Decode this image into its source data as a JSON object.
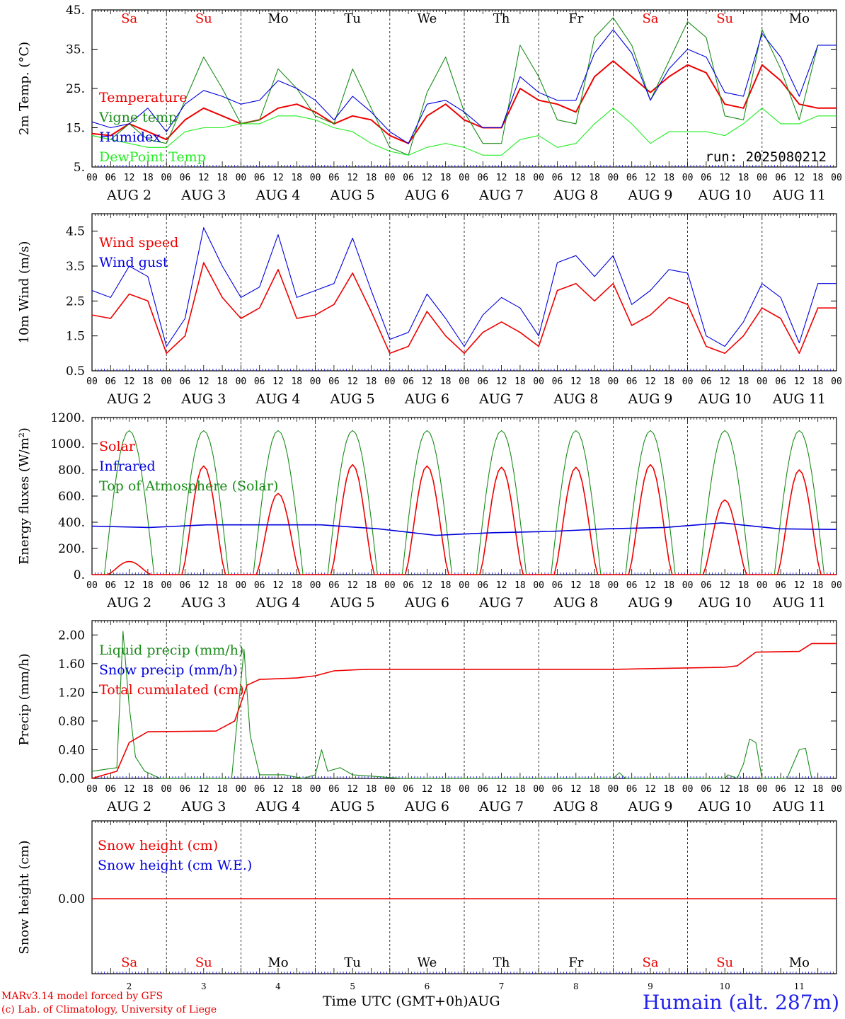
{
  "colors": {
    "red": "#ee0000",
    "blue": "#0000dd",
    "green": "#1a8c1a",
    "lightgreen": "#22ee22",
    "black": "#000000"
  },
  "run_label": "run: 2025080212",
  "footer": {
    "credit_line1": "MARv3.14 model forced by GFS",
    "credit_line2": "(c) Lab. of Climatology, University of Liege",
    "xaxis_title": "Time UTC (GMT+0h)",
    "month": "AUG",
    "station": "Humain (alt. 287m)"
  },
  "chart_data": [
    {
      "type": "line",
      "ylabel": "2m Temp. (°C)",
      "ylim": [
        5,
        45
      ],
      "yticks": [
        "5.",
        "15.",
        "25.",
        "35.",
        "45."
      ],
      "legend": [
        "Temperature",
        "Vigne temp",
        "Humidex",
        "DewPoint Temp"
      ],
      "x_hours": [
        0,
        6,
        12,
        18,
        24,
        30,
        36,
        42,
        48,
        54,
        60,
        66,
        72,
        78,
        84,
        90,
        96,
        102,
        108,
        114,
        120,
        126,
        132,
        138,
        144,
        150,
        156,
        162,
        168,
        174,
        180,
        186,
        192,
        198,
        204,
        210,
        216,
        222,
        228,
        234
      ],
      "series": [
        {
          "name": "Temperature",
          "color": "red",
          "values": [
            13.5,
            13,
            16,
            14,
            12,
            17,
            20,
            18,
            16,
            17,
            20,
            21,
            19,
            16,
            18,
            17,
            13,
            11,
            18,
            21,
            17,
            15,
            15,
            25,
            22,
            21,
            19,
            28,
            32,
            28,
            24,
            28,
            31,
            29,
            21,
            20,
            31,
            27,
            21,
            20
          ]
        },
        {
          "name": "Vigne temp",
          "color": "green",
          "values": [
            13,
            12,
            16,
            12,
            11,
            22,
            33,
            25,
            16,
            17,
            30,
            25,
            18,
            16,
            30,
            20,
            10,
            8,
            24,
            33,
            19,
            11,
            11,
            36,
            28,
            17,
            16,
            38,
            43,
            36,
            22,
            32,
            42,
            38,
            18,
            17,
            40,
            30,
            17,
            36
          ]
        },
        {
          "name": "Humidex",
          "color": "blue",
          "values": [
            16.5,
            15,
            16,
            20,
            14,
            21,
            24.5,
            23,
            21,
            22,
            27,
            25,
            22,
            17,
            23,
            19,
            14,
            11,
            21,
            22,
            19,
            15,
            15,
            28,
            24,
            22,
            22,
            34,
            40,
            34,
            22,
            30,
            35,
            33,
            24,
            23,
            39,
            33,
            23,
            36
          ]
        },
        {
          "name": "DewPoint Temp",
          "color": "lightgreen",
          "values": [
            13,
            12,
            11,
            10,
            10,
            14,
            15,
            15,
            16,
            16,
            18,
            18,
            17,
            15,
            14,
            11,
            9,
            8,
            10,
            11,
            10,
            8,
            8,
            12,
            13,
            10,
            11,
            16,
            20,
            16,
            11,
            14,
            14,
            14,
            13,
            16,
            20,
            16,
            16,
            18
          ]
        }
      ]
    },
    {
      "type": "line",
      "ylabel": "10m Wind (m/s)",
      "ylim": [
        0.5,
        5
      ],
      "yticks": [
        "0.5",
        "1.5",
        "2.5",
        "3.5",
        "4.5"
      ],
      "legend": [
        "Wind speed",
        "Wind gust"
      ],
      "x_hours": [
        0,
        6,
        12,
        18,
        24,
        30,
        36,
        42,
        48,
        54,
        60,
        66,
        72,
        78,
        84,
        90,
        96,
        102,
        108,
        114,
        120,
        126,
        132,
        138,
        144,
        150,
        156,
        162,
        168,
        174,
        180,
        186,
        192,
        198,
        204,
        210,
        216,
        222,
        228,
        234
      ],
      "series": [
        {
          "name": "Wind speed",
          "color": "red",
          "values": [
            2.1,
            2.0,
            2.7,
            2.5,
            1.0,
            1.5,
            3.6,
            2.6,
            2.0,
            2.3,
            3.4,
            2.0,
            2.1,
            2.4,
            3.3,
            2.2,
            1.0,
            1.2,
            2.2,
            1.5,
            1.0,
            1.6,
            1.9,
            1.6,
            1.2,
            2.8,
            3.0,
            2.5,
            3.0,
            1.8,
            2.1,
            2.6,
            2.4,
            1.2,
            1.0,
            1.5,
            2.3,
            2.0,
            1.0,
            2.3
          ]
        },
        {
          "name": "Wind gust",
          "color": "blue",
          "values": [
            2.8,
            2.6,
            3.5,
            3.2,
            1.2,
            2.0,
            4.6,
            3.5,
            2.6,
            2.9,
            4.4,
            2.6,
            2.8,
            3.0,
            4.3,
            2.8,
            1.4,
            1.6,
            2.7,
            2.0,
            1.2,
            2.1,
            2.6,
            2.3,
            1.5,
            3.6,
            3.8,
            3.2,
            3.8,
            2.4,
            2.8,
            3.4,
            3.3,
            1.5,
            1.2,
            1.9,
            3.0,
            2.6,
            1.3,
            3.0
          ]
        }
      ]
    },
    {
      "type": "line",
      "ylabel": "Energy fluxes (W/m²)",
      "ylim": [
        0,
        1200
      ],
      "yticks": [
        "0.",
        "200.",
        "400.",
        "600.",
        "800.",
        "1000.",
        "1200."
      ],
      "legend": [
        "Solar",
        "Infrared",
        "Top of Atmosphere (Solar)"
      ],
      "solar_peaks": [
        100,
        830,
        620,
        840,
        830,
        820,
        820,
        840,
        570,
        800
      ],
      "toa_peak": 1100,
      "infrared": [
        370,
        360,
        380,
        380,
        380,
        350,
        300,
        320,
        330,
        350,
        360,
        395,
        350,
        345
      ]
    },
    {
      "type": "line",
      "ylabel": "Precip (mm/h)",
      "ylim": [
        0,
        2.2
      ],
      "yticks": [
        "0.00",
        "0.40",
        "0.80",
        "1.20",
        "1.60",
        "2.00"
      ],
      "legend": [
        "Liquid precip (mm/h)",
        "Snow precip (mm/h)",
        "Total cumulated (cm)"
      ],
      "series": [
        {
          "name": "Liquid precip (mm/h)",
          "color": "green",
          "points": [
            [
              0,
              0.1
            ],
            [
              8,
              0.15
            ],
            [
              10,
              2.05
            ],
            [
              12,
              1.0
            ],
            [
              14,
              0.3
            ],
            [
              17,
              0.1
            ],
            [
              22,
              0
            ],
            [
              45,
              0
            ],
            [
              47,
              0.9
            ],
            [
              49,
              1.8
            ],
            [
              51,
              0.6
            ],
            [
              54,
              0.05
            ],
            [
              62,
              0.05
            ],
            [
              68,
              0
            ],
            [
              72,
              0.05
            ],
            [
              74,
              0.4
            ],
            [
              76,
              0.1
            ],
            [
              80,
              0.15
            ],
            [
              84,
              0.05
            ],
            [
              100,
              0
            ],
            [
              168,
              0
            ],
            [
              170,
              0.08
            ],
            [
              172,
              0
            ],
            [
              204,
              0
            ],
            [
              205,
              0.05
            ],
            [
              208,
              0
            ],
            [
              210,
              0.2
            ],
            [
              212,
              0.55
            ],
            [
              214,
              0.5
            ],
            [
              216,
              0
            ],
            [
              224,
              0
            ],
            [
              228,
              0.4
            ],
            [
              230,
              0.42
            ],
            [
              232,
              0
            ]
          ]
        },
        {
          "name": "Total cumulated (cm)",
          "color": "red",
          "points": [
            [
              0,
              0
            ],
            [
              8,
              0.1
            ],
            [
              12,
              0.5
            ],
            [
              18,
              0.65
            ],
            [
              40,
              0.66
            ],
            [
              46,
              0.8
            ],
            [
              50,
              1.3
            ],
            [
              54,
              1.38
            ],
            [
              66,
              1.4
            ],
            [
              72,
              1.43
            ],
            [
              78,
              1.5
            ],
            [
              88,
              1.52
            ],
            [
              168,
              1.52
            ],
            [
              204,
              1.55
            ],
            [
              208,
              1.57
            ],
            [
              214,
              1.76
            ],
            [
              228,
              1.77
            ],
            [
              232,
              1.88
            ],
            [
              240,
              1.88
            ]
          ]
        }
      ]
    },
    {
      "type": "line",
      "ylabel": "Snow height (cm)",
      "yticks": [
        "0.00"
      ],
      "legend": [
        "Snow height (cm)",
        "Snow height (cm W.E.)"
      ],
      "series": [
        {
          "name": "Snow height (cm)",
          "color": "red",
          "values": [
            0,
            0
          ]
        }
      ]
    }
  ],
  "days": {
    "weekday_labels": [
      "Sa",
      "Su",
      "Mo",
      "Tu",
      "We",
      "Th",
      "Fr",
      "Sa",
      "Su",
      "Mo"
    ],
    "weekday_colors": [
      "red",
      "red",
      "black",
      "black",
      "black",
      "black",
      "black",
      "red",
      "red",
      "black"
    ],
    "date_labels": [
      "AUG  2",
      "AUG  3",
      "AUG  4",
      "AUG  5",
      "AUG  6",
      "AUG  7",
      "AUG  8",
      "AUG  9",
      "AUG 10",
      "AUG 11"
    ],
    "day_numbers": [
      "2",
      "3",
      "4",
      "5",
      "6",
      "7",
      "8",
      "9",
      "10",
      "11"
    ],
    "hour_ticks": [
      "00",
      "06",
      "12",
      "18"
    ],
    "final_tick": "00"
  }
}
